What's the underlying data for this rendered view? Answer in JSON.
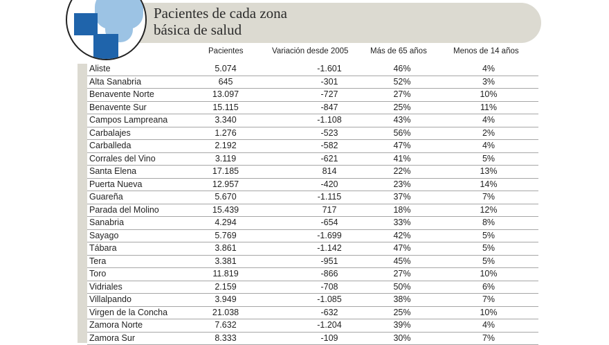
{
  "title": {
    "line1": "Pacientes de cada zona",
    "line2": "básica de salud"
  },
  "columns": [
    "Pacientes",
    "Variación desde 2005",
    "Más de 65 años",
    "Menos de 14 años"
  ],
  "rows": [
    [
      "Aliste",
      "5.074",
      "-1.601",
      "46%",
      "4%"
    ],
    [
      "Alta Sanabria",
      "645",
      "-301",
      "52%",
      "3%"
    ],
    [
      "Benavente Norte",
      "13.097",
      "-727",
      "27%",
      "10%"
    ],
    [
      "Benavente Sur",
      "15.115",
      "-847",
      "25%",
      "11%"
    ],
    [
      "Campos Lampreana",
      "3.340",
      "-1.108",
      "43%",
      "4%"
    ],
    [
      "Carbalajes",
      "1.276",
      "-523",
      "56%",
      "2%"
    ],
    [
      "Carballeda",
      "2.192",
      "-582",
      "47%",
      "4%"
    ],
    [
      "Corrales del Vino",
      "3.119",
      "-621",
      "41%",
      "5%"
    ],
    [
      "Santa Elena",
      "17.185",
      "814",
      "22%",
      "13%"
    ],
    [
      "Puerta Nueva",
      "12.957",
      "-420",
      "23%",
      "14%"
    ],
    [
      "Guareña",
      "5.670",
      "-1.115",
      "37%",
      "7%"
    ],
    [
      "Parada del Molino",
      "15.439",
      "717",
      "18%",
      "12%"
    ],
    [
      "Sanabria",
      "4.294",
      "-654",
      "33%",
      "8%"
    ],
    [
      "Sayago",
      "5.769",
      "-1.699",
      "42%",
      "5%"
    ],
    [
      "Tábara",
      "3.861",
      "-1.142",
      "47%",
      "5%"
    ],
    [
      "Tera",
      "3.381",
      "-951",
      "45%",
      "5%"
    ],
    [
      "Toro",
      "11.819",
      "-866",
      "27%",
      "10%"
    ],
    [
      "Vidriales",
      "2.159",
      "-708",
      "50%",
      "6%"
    ],
    [
      "Villalpando",
      "3.949",
      "-1.085",
      "38%",
      "7%"
    ],
    [
      "Virgen de la Concha",
      "21.038",
      "-632",
      "25%",
      "10%"
    ],
    [
      "Zamora Norte",
      "7.632",
      "-1.204",
      "39%",
      "4%"
    ],
    [
      "Zamora Sur",
      "8.333",
      "-109",
      "30%",
      "7%"
    ]
  ]
}
